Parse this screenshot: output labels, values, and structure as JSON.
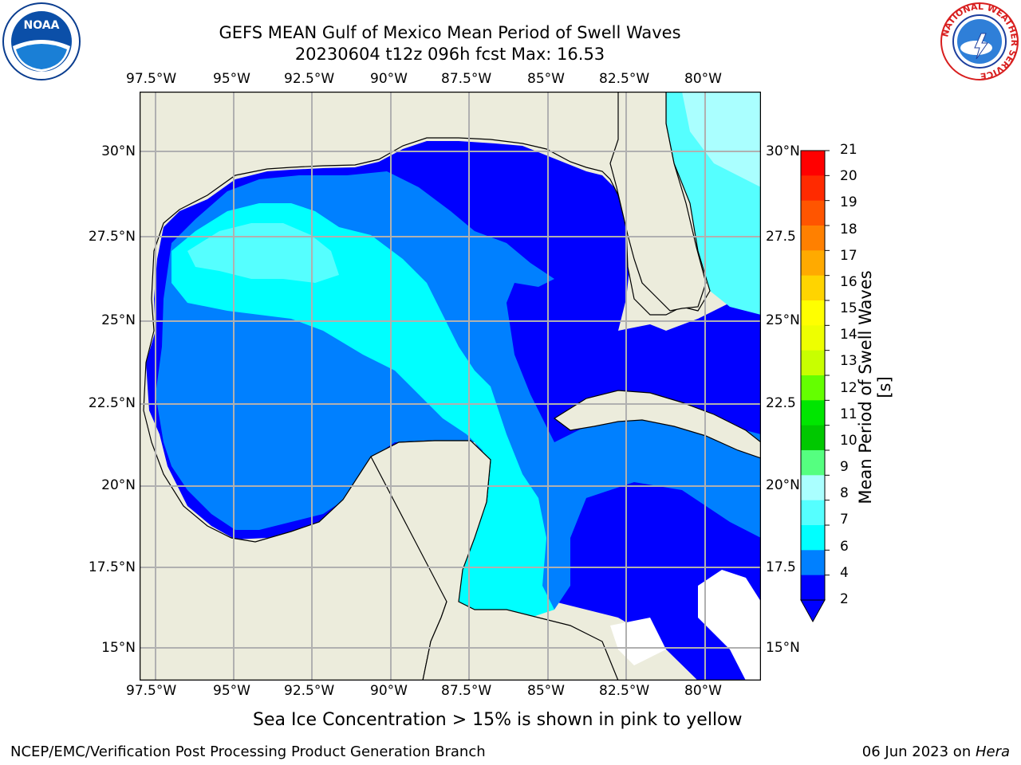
{
  "title": {
    "line1": "GEFS MEAN Gulf of Mexico Mean Period of Swell Waves",
    "line2": "20230604 t12z 096h fcst   Max: 16.53"
  },
  "map": {
    "lon_ticks": [
      "97.5°W",
      "95°W",
      "92.5°W",
      "90°W",
      "87.5°W",
      "85°W",
      "82.5°W",
      "80°W"
    ],
    "lat_ticks_left": [
      "30°N",
      "27.5°N",
      "25°N",
      "22.5°N",
      "20°N",
      "17.5°N",
      "15°N"
    ],
    "lat_ticks_right": [
      "30°N",
      "27.5",
      "25°N",
      "22.5",
      "20°N",
      "17.5",
      "15°N"
    ]
  },
  "colorbar": {
    "label": "Mean Period of Swell Waves [s]",
    "ticks": [
      "21",
      "20",
      "19",
      "18",
      "17",
      "16",
      "15",
      "14",
      "13",
      "12",
      "11",
      "10",
      "9",
      "8",
      "7",
      "6",
      "4",
      "2"
    ],
    "colors": [
      "#ff0000",
      "#ff2a00",
      "#ff5500",
      "#ff8000",
      "#ffaa00",
      "#ffd400",
      "#ffff00",
      "#eeff00",
      "#c8ff00",
      "#64ff00",
      "#00e600",
      "#00c800",
      "#55ff80",
      "#aaffff",
      "#55ffff",
      "#00ffff",
      "#0080ff",
      "#0000ff"
    ]
  },
  "note": "Sea Ice Concentration > 15% is shown in pink to yellow",
  "footer": {
    "left": "NCEP/EMC/Verification Post Processing Product Generation Branch",
    "right_date": "06 Jun 2023 on ",
    "right_host": "Hera"
  },
  "logos": {
    "noaa": "NOAA",
    "nws_ring": "NATIONAL WEATHER SERVICE"
  }
}
